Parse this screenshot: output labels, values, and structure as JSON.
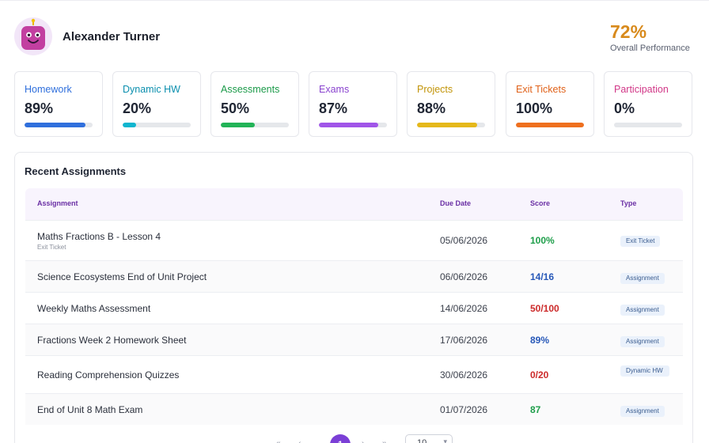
{
  "student": {
    "name": "Alexander Turner"
  },
  "overall": {
    "value": "72%",
    "label": "Overall Performance",
    "color": "#d88a1c"
  },
  "metrics": [
    {
      "label": "Homework",
      "value": "89%",
      "fraction": 0.89,
      "color": "#2f6fdc",
      "label_color": "#2f6fdc"
    },
    {
      "label": "Dynamic HW",
      "value": "20%",
      "fraction": 0.2,
      "color": "#0fb5cf",
      "label_color": "#0b8fae"
    },
    {
      "label": "Assessments",
      "value": "50%",
      "fraction": 0.5,
      "color": "#22b357",
      "label_color": "#1b9a49"
    },
    {
      "label": "Exams",
      "value": "87%",
      "fraction": 0.87,
      "color": "#a055e8",
      "label_color": "#8a44cf"
    },
    {
      "label": "Projects",
      "value": "88%",
      "fraction": 0.88,
      "color": "#e5b81a",
      "label_color": "#c29408"
    },
    {
      "label": "Exit Tickets",
      "value": "100%",
      "fraction": 1.0,
      "color": "#ef6f1e",
      "label_color": "#e0621a"
    },
    {
      "label": "Participation",
      "value": "0%",
      "fraction": 0.0,
      "color": "#df3f8f",
      "label_color": "#d13787"
    }
  ],
  "assignments": {
    "title": "Recent Assignments",
    "columns": {
      "assignment": "Assignment",
      "due": "Due Date",
      "score": "Score",
      "type": "Type"
    },
    "rows": [
      {
        "title": "Maths Fractions B - Lesson 4",
        "subtitle": "Exit Ticket",
        "due": "05/06/2026",
        "score": "100%",
        "score_color": "#1e9e4a",
        "type": "Exit Ticket"
      },
      {
        "title": "Science Ecosystems End of Unit Project",
        "subtitle": "",
        "due": "06/06/2026",
        "score": "14/16",
        "score_color": "#2758b8",
        "type": "Assignment"
      },
      {
        "title": "Weekly Maths Assessment",
        "subtitle": "",
        "due": "14/06/2026",
        "score": "50/100",
        "score_color": "#cc2a2a",
        "type": "Assignment"
      },
      {
        "title": "Fractions Week 2 Homework Sheet",
        "subtitle": "",
        "due": "17/06/2026",
        "score": "89%",
        "score_color": "#2758b8",
        "type": "Assignment"
      },
      {
        "title": "Reading Comprehension Quizzes",
        "subtitle": "",
        "due": "30/06/2026",
        "score": "0/20",
        "score_color": "#cc2a2a",
        "type": "Dynamic HW"
      },
      {
        "title": "End of Unit 8 Math Exam",
        "subtitle": "",
        "due": "01/07/2026",
        "score": "87",
        "score_color": "#1e9e4a",
        "type": "Assignment"
      }
    ]
  },
  "pagination": {
    "current_page": "1",
    "page_size": "10"
  }
}
